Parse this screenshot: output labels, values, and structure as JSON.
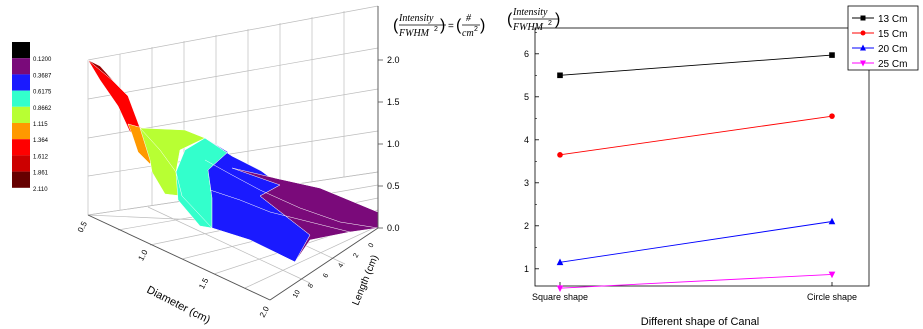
{
  "chart_data": [
    {
      "type": "surface3d",
      "xlabel": "Diameter (cm)",
      "ylabel": "Length (cm)",
      "zlabel": {
        "numerator": "Intensity",
        "denominator": "FWHM",
        "exponent": "2",
        "equals": "=",
        "unit_num": "#",
        "unit_den": "cm",
        "unit_exp": "2"
      },
      "x_ticks": [
        "0.5",
        "1.0",
        "1.5",
        "2.0"
      ],
      "y_ticks": [
        "0",
        "2",
        "4",
        "6",
        "8",
        "10"
      ],
      "z_ticks": [
        "0.0",
        "0.5",
        "1.0",
        "1.5",
        "2.0"
      ],
      "xlim": [
        0.5,
        2.0
      ],
      "ylim": [
        0,
        10
      ],
      "zlim": [
        0,
        2.0
      ],
      "colorbar": {
        "labels": [
          "0.1200",
          "0.3687",
          "0.6175",
          "0.8662",
          "1.115",
          "1.364",
          "1.612",
          "1.861",
          "2.110"
        ],
        "colors": [
          "#000000",
          "#7a0a7a",
          "#1a1aff",
          "#33ffcc",
          "#b8ff33",
          "#ff9900",
          "#ff0000",
          "#cc0000",
          "#660000"
        ]
      },
      "corner_values": {
        "x": [
          0.5,
          2.0
        ],
        "y": [
          0,
          10
        ],
        "z_front_left": 2.0,
        "z_back_right": 0.12
      }
    },
    {
      "type": "line",
      "title": "",
      "ylabel": {
        "numerator": "Intensity",
        "denominator": "FWHM",
        "exponent": "2"
      },
      "xlabel": "Different shape of Canal",
      "categories": [
        "Square shape",
        "Circle shape"
      ],
      "y_ticks": [
        "1",
        "2",
        "3",
        "4",
        "5",
        "6"
      ],
      "ylim": [
        0.6,
        6.6
      ],
      "legend": "top-right",
      "series": [
        {
          "name": "13 Cm",
          "values": [
            5.5,
            5.97
          ],
          "color": "#000000",
          "marker": "square"
        },
        {
          "name": "15 Cm",
          "values": [
            3.65,
            4.55
          ],
          "color": "#ff0000",
          "marker": "circle"
        },
        {
          "name": "20 Cm",
          "values": [
            1.15,
            2.1
          ],
          "color": "#0000ff",
          "marker": "triangle"
        },
        {
          "name": "25 Cm",
          "values": [
            0.55,
            0.87
          ],
          "color": "#ff00ff",
          "marker": "triangle-down"
        }
      ]
    }
  ]
}
